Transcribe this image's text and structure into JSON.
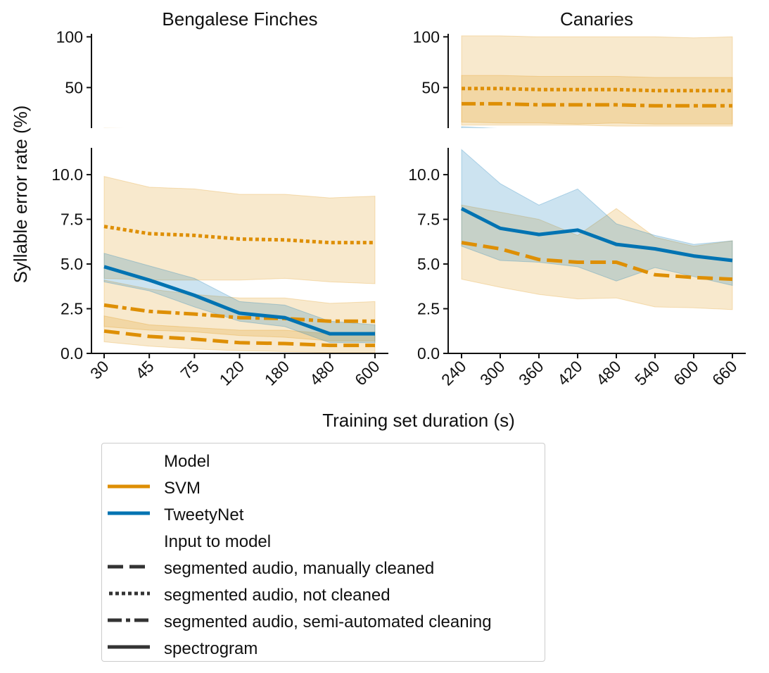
{
  "chart_data": {
    "type": "line",
    "ylabel": "Syllable error rate (%)",
    "xlabel": "Training set duration (s)",
    "legend": {
      "model_title": "Model",
      "models": [
        {
          "name": "SVM",
          "color": "#de8f05"
        },
        {
          "name": "TweetyNet",
          "color": "#0173b2"
        }
      ],
      "input_title": "Input to model",
      "inputs": [
        {
          "name": "segmented audio, manually cleaned",
          "dash": "dashed"
        },
        {
          "name": "segmented audio, not cleaned",
          "dash": "dotted"
        },
        {
          "name": "segmented audio, semi-automated cleaning",
          "dash": "dashdot"
        },
        {
          "name": "spectrogram",
          "dash": "solid"
        }
      ]
    },
    "panels": [
      {
        "title": "Bengalese Finches",
        "categories": [
          "30",
          "45",
          "75",
          "120",
          "180",
          "480",
          "600"
        ],
        "ylim_top": [
          10,
          103
        ],
        "yticks_top": [
          "50",
          "100"
        ],
        "ylim_bottom": [
          0,
          11.5
        ],
        "yticks_bottom": [
          "0.0",
          "2.5",
          "5.0",
          "7.5",
          "10.0"
        ],
        "series": [
          {
            "name": "SVM, segmented audio, not cleaned",
            "model": "SVM",
            "input": "segmented audio, not cleaned",
            "values": [
              7.1,
              6.7,
              6.6,
              6.4,
              6.35,
              6.2,
              6.2
            ],
            "lower": [
              4.2,
              4.1,
              4.1,
              4.1,
              4.2,
              4.0,
              3.9
            ],
            "upper": [
              9.9,
              9.3,
              9.2,
              8.9,
              8.9,
              8.7,
              8.8
            ]
          },
          {
            "name": "SVM, segmented audio, semi-automated cleaning",
            "model": "SVM",
            "input": "segmented audio, semi-automated cleaning",
            "values": [
              2.7,
              2.35,
              2.2,
              2.0,
              1.95,
              1.8,
              1.8
            ],
            "lower": [
              1.5,
              1.3,
              1.2,
              1.0,
              0.9,
              0.7,
              0.7
            ],
            "upper": [
              4.1,
              3.6,
              3.3,
              3.1,
              3.1,
              2.8,
              2.9
            ]
          },
          {
            "name": "SVM, segmented audio, manually cleaned",
            "model": "SVM",
            "input": "segmented audio, manually cleaned",
            "values": [
              1.25,
              0.95,
              0.8,
              0.6,
              0.55,
              0.45,
              0.45
            ],
            "lower": [
              0.65,
              0.4,
              0.25,
              0.15,
              0.1,
              0.05,
              0.05
            ],
            "upper": [
              2.1,
              1.6,
              1.45,
              1.3,
              1.3,
              1.1,
              1.2
            ]
          },
          {
            "name": "TweetyNet, spectrogram",
            "model": "TweetyNet",
            "input": "spectrogram",
            "values": [
              4.85,
              4.1,
              3.25,
              2.25,
              2.0,
              1.1,
              1.1
            ],
            "lower": [
              4.0,
              3.5,
              2.6,
              1.8,
              1.5,
              0.6,
              0.6
            ],
            "upper": [
              5.6,
              4.9,
              4.2,
              2.9,
              2.7,
              1.8,
              1.6
            ]
          }
        ]
      },
      {
        "title": "Canaries",
        "categories": [
          "240",
          "300",
          "360",
          "420",
          "480",
          "540",
          "600",
          "660"
        ],
        "ylim_top": [
          10,
          103
        ],
        "yticks_top": [
          "50",
          "100"
        ],
        "ylim_bottom": [
          0,
          11.5
        ],
        "yticks_bottom": [
          "0.0",
          "2.5",
          "5.0",
          "7.5",
          "10.0"
        ],
        "series": [
          {
            "name": "SVM, segmented audio, not cleaned",
            "model": "SVM",
            "input": "segmented audio, not cleaned",
            "values": [
              49,
              49,
              48,
              48,
              48,
              47,
              47,
              47
            ],
            "lower": [
              16,
              15,
              15,
              14,
              15,
              14,
              14,
              14
            ],
            "upper": [
              101,
              101,
              100,
              100,
              100,
              100,
              99,
              100
            ]
          },
          {
            "name": "SVM, segmented audio, semi-automated cleaning",
            "model": "SVM",
            "input": "segmented audio, semi-automated cleaning",
            "values": [
              34,
              34,
              33,
              33,
              33,
              32,
              32,
              32
            ],
            "lower": [
              13,
              13,
              13,
              13,
              12,
              12,
              12,
              12
            ],
            "upper": [
              62,
              62,
              61,
              61,
              61,
              60,
              60,
              60
            ]
          },
          {
            "name": "SVM, segmented audio, manually cleaned",
            "model": "SVM",
            "input": "segmented audio, manually cleaned",
            "values": [
              6.2,
              5.85,
              5.25,
              5.1,
              5.1,
              4.4,
              4.25,
              4.15
            ],
            "lower": [
              4.15,
              3.7,
              3.3,
              3.05,
              3.1,
              2.6,
              2.55,
              2.45
            ],
            "upper": [
              8.3,
              7.9,
              7.5,
              6.6,
              8.1,
              6.5,
              6.0,
              6.3
            ]
          },
          {
            "name": "TweetyNet, spectrogram",
            "model": "TweetyNet",
            "input": "spectrogram",
            "values": [
              8.1,
              7.0,
              6.65,
              6.9,
              6.1,
              5.85,
              5.45,
              5.2
            ],
            "lower": [
              6.0,
              5.2,
              5.1,
              4.85,
              4.05,
              4.8,
              4.3,
              3.8
            ],
            "upper": [
              11.4,
              9.5,
              8.3,
              9.2,
              7.25,
              6.6,
              6.1,
              6.3
            ]
          }
        ]
      }
    ]
  }
}
